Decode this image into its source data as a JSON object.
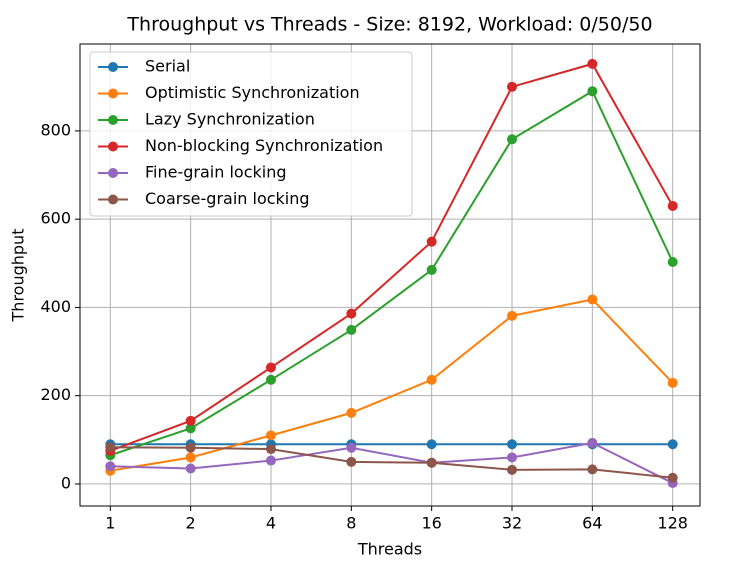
{
  "chart_data": {
    "type": "line",
    "title": "Throughput vs Threads - Size: 8192, Workload: 0/50/50",
    "x_label": "Threads",
    "y_label": "Throughput",
    "x": [
      1,
      2,
      4,
      8,
      16,
      32,
      64,
      128
    ],
    "xscale": "log2",
    "xlim": [
      0.77,
      162
    ],
    "xticks": [
      1,
      2,
      4,
      8,
      16,
      32,
      64,
      128
    ],
    "ylim": [
      -50,
      997
    ],
    "yticks": [
      0,
      200,
      400,
      600,
      800
    ],
    "grid": true,
    "legend": "upper left",
    "series": [
      {
        "name": "Serial",
        "color": "#1f77b4",
        "values": [
          90,
          90,
          90,
          90,
          90,
          90,
          90,
          90
        ]
      },
      {
        "name": "Optimistic Synchronization",
        "color": "#ff7f0e",
        "values": [
          30,
          60,
          110,
          161,
          236,
          381,
          418,
          229
        ]
      },
      {
        "name": "Lazy Synchronization",
        "color": "#2ca02c",
        "values": [
          65,
          126,
          236,
          349,
          485,
          781,
          890,
          503
        ]
      },
      {
        "name": "Non-blocking Synchronization",
        "color": "#d62728",
        "values": [
          75,
          143,
          264,
          386,
          549,
          900,
          952,
          630
        ]
      },
      {
        "name": "Fine-grain locking",
        "color": "#9467bd",
        "values": [
          40,
          35,
          53,
          82,
          48,
          60,
          93,
          2
        ]
      },
      {
        "name": "Coarse-grain locking",
        "color": "#8c564b",
        "values": [
          83,
          82,
          79,
          50,
          48,
          32,
          33,
          14
        ]
      }
    ]
  }
}
